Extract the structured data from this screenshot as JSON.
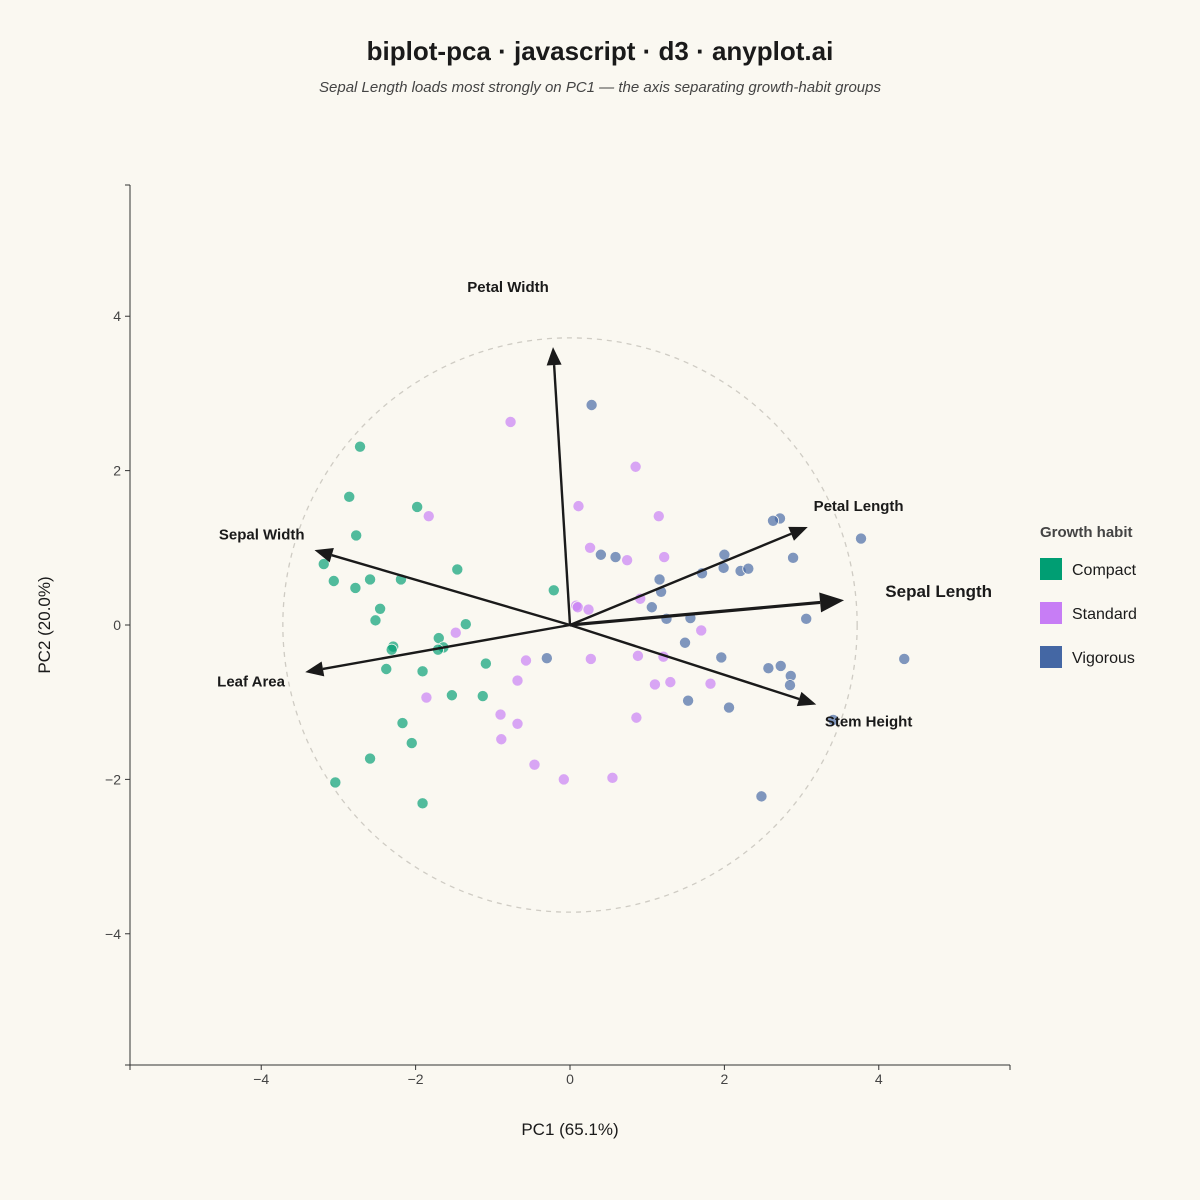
{
  "chart_data": {
    "type": "scatter",
    "title": "biplot-pca · javascript · d3 · anyplot.ai",
    "subtitle": "Sepal Length loads most strongly on PC1 — the axis separating growth-habit groups",
    "xlabel": "PC1 (65.1%)",
    "ylabel": "PC2 (20.0%)",
    "xlim": [
      -5.7,
      5.7
    ],
    "ylim": [
      -5.7,
      5.7
    ],
    "x_ticks": [
      "−4",
      "−2",
      "0",
      "2",
      "4"
    ],
    "x_tick_values": [
      -4,
      -2,
      0,
      2,
      4
    ],
    "y_ticks": [
      "4",
      "2",
      "0",
      "−2",
      "−4"
    ],
    "y_tick_values": [
      4,
      2,
      0,
      -2,
      -4
    ],
    "grid": false,
    "correlation_circle_radius": 3.72,
    "legend": {
      "title": "Growth habit",
      "placement": "right"
    },
    "series": [
      {
        "name": "Compact",
        "color": "#009E73",
        "points": [
          [
            -2.72,
            2.31
          ],
          [
            -2.86,
            1.66
          ],
          [
            -2.77,
            1.16
          ],
          [
            -1.98,
            1.53
          ],
          [
            -3.19,
            0.79
          ],
          [
            -3.06,
            0.57
          ],
          [
            -2.78,
            0.48
          ],
          [
            -2.59,
            0.59
          ],
          [
            -2.19,
            0.59
          ],
          [
            -2.46,
            0.21
          ],
          [
            -2.52,
            0.06
          ],
          [
            -1.46,
            0.72
          ],
          [
            -0.21,
            0.45
          ],
          [
            -1.35,
            0.01
          ],
          [
            -1.7,
            -0.17
          ],
          [
            -1.64,
            -0.29
          ],
          [
            -1.71,
            -0.32
          ],
          [
            -2.29,
            -0.28
          ],
          [
            -2.31,
            -0.32
          ],
          [
            -2.38,
            -0.57
          ],
          [
            -1.91,
            -0.6
          ],
          [
            -1.09,
            -0.5
          ],
          [
            -1.53,
            -0.91
          ],
          [
            -1.13,
            -0.92
          ],
          [
            -2.17,
            -1.27
          ],
          [
            -2.05,
            -1.53
          ],
          [
            -2.59,
            -1.73
          ],
          [
            -3.04,
            -2.04
          ],
          [
            -1.91,
            -2.31
          ]
        ]
      },
      {
        "name": "Standard",
        "color": "#C77DF5",
        "points": [
          [
            -0.77,
            2.63
          ],
          [
            0.85,
            2.05
          ],
          [
            0.11,
            1.54
          ],
          [
            1.15,
            1.41
          ],
          [
            -1.83,
            1.41
          ],
          [
            0.26,
            1.0
          ],
          [
            0.74,
            0.84
          ],
          [
            1.22,
            0.88
          ],
          [
            0.91,
            0.34
          ],
          [
            0.08,
            0.25
          ],
          [
            0.1,
            0.23
          ],
          [
            0.24,
            0.2
          ],
          [
            -1.48,
            -0.1
          ],
          [
            1.7,
            -0.07
          ],
          [
            -0.57,
            -0.46
          ],
          [
            0.27,
            -0.44
          ],
          [
            0.88,
            -0.4
          ],
          [
            1.21,
            -0.41
          ],
          [
            -0.68,
            -0.72
          ],
          [
            1.1,
            -0.77
          ],
          [
            1.3,
            -0.74
          ],
          [
            1.82,
            -0.76
          ],
          [
            -1.86,
            -0.94
          ],
          [
            -0.9,
            -1.16
          ],
          [
            -0.68,
            -1.28
          ],
          [
            0.86,
            -1.2
          ],
          [
            -0.89,
            -1.48
          ],
          [
            -0.46,
            -1.81
          ],
          [
            -0.08,
            -2.0
          ],
          [
            0.55,
            -1.98
          ]
        ]
      },
      {
        "name": "Vigorous",
        "color": "#4467A4",
        "points": [
          [
            0.28,
            2.85
          ],
          [
            2.72,
            1.38
          ],
          [
            2.63,
            1.35
          ],
          [
            3.77,
            1.12
          ],
          [
            0.4,
            0.91
          ],
          [
            0.59,
            0.88
          ],
          [
            2.0,
            0.91
          ],
          [
            2.89,
            0.87
          ],
          [
            1.71,
            0.67
          ],
          [
            1.99,
            0.74
          ],
          [
            2.21,
            0.7
          ],
          [
            2.31,
            0.73
          ],
          [
            1.16,
            0.59
          ],
          [
            1.18,
            0.43
          ],
          [
            1.06,
            0.23
          ],
          [
            1.25,
            0.08
          ],
          [
            1.56,
            0.09
          ],
          [
            3.06,
            0.08
          ],
          [
            1.49,
            -0.23
          ],
          [
            -0.3,
            -0.43
          ],
          [
            1.96,
            -0.42
          ],
          [
            2.57,
            -0.56
          ],
          [
            2.73,
            -0.53
          ],
          [
            4.33,
            -0.44
          ],
          [
            2.86,
            -0.66
          ],
          [
            2.85,
            -0.78
          ],
          [
            1.53,
            -0.98
          ],
          [
            2.06,
            -1.07
          ],
          [
            3.41,
            -1.23
          ],
          [
            2.48,
            -2.22
          ]
        ]
      }
    ],
    "loadings": [
      {
        "name": "Petal Width",
        "x": -0.22,
        "y": 3.6,
        "bold": false
      },
      {
        "name": "Petal Length",
        "x": 3.08,
        "y": 1.27,
        "bold": false
      },
      {
        "name": "Sepal Width",
        "x": -3.31,
        "y": 0.97,
        "bold": false
      },
      {
        "name": "Sepal Length",
        "x": 3.55,
        "y": 0.32,
        "bold": true
      },
      {
        "name": "Leaf Area",
        "x": -3.43,
        "y": -0.61,
        "bold": false
      },
      {
        "name": "Stem Height",
        "x": 3.19,
        "y": -1.03,
        "bold": false
      }
    ]
  },
  "colors": {
    "background": "#FAF8F1",
    "text": "#1A1A1A",
    "arrow": "#1A1A1A",
    "circle": "#CFCCC4"
  }
}
